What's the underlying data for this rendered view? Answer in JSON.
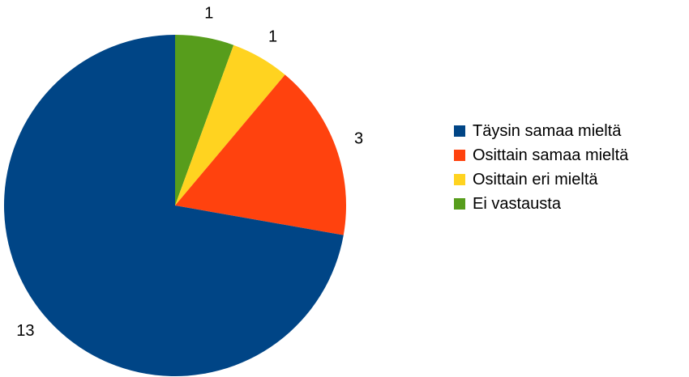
{
  "chart_data": {
    "type": "pie",
    "title": "",
    "legend_position": "right",
    "slices": [
      {
        "label": "Ei vastausta",
        "value": 1,
        "color": "#579d1c"
      },
      {
        "label": "Osittain eri mieltä",
        "value": 1,
        "color": "#ffd320"
      },
      {
        "label": "Osittain samaa mieltä",
        "value": 3,
        "color": "#ff420e"
      },
      {
        "label": "Täysin samaa mieltä",
        "value": 13,
        "color": "#004586"
      }
    ],
    "legend_order": [
      "Täysin samaa mieltä",
      "Osittain samaa mieltä",
      "Osittain eri mieltä",
      "Ei vastausta"
    ]
  }
}
